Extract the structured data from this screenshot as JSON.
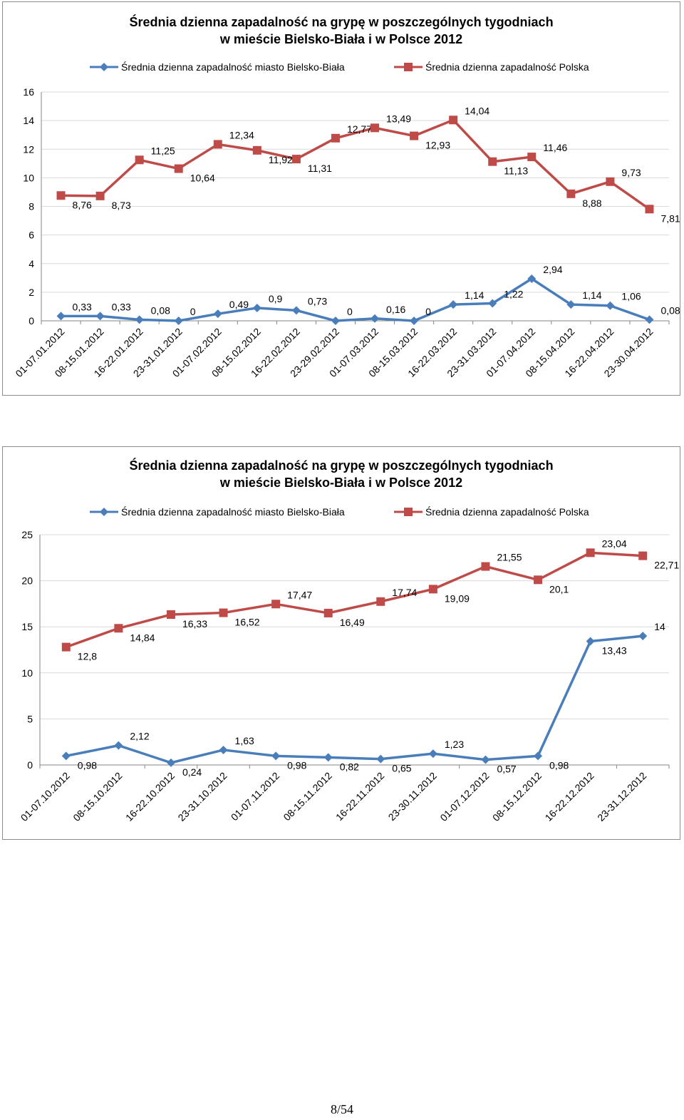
{
  "colors": {
    "blue": "#4a7ebb",
    "red": "#be4b48",
    "grid": "#d9d9d9",
    "axis": "#868686"
  },
  "page_number": "8/54",
  "chart_data": [
    {
      "type": "line",
      "title": "Średnia dzienna zapadalność na grypę w poszczególnych tygodniach",
      "subtitle": "w mieście Bielsko-Biała i w Polsce 2012",
      "legend_position": "top",
      "grid": true,
      "ylim": [
        0,
        16
      ],
      "yticks": [
        0,
        2,
        4,
        6,
        8,
        10,
        12,
        14,
        16
      ],
      "categories": [
        "01-07.01.2012",
        "08-15.01.2012",
        "16-22.01.2012",
        "23-31.01.2012",
        "01-07.02.2012",
        "08-15.02.2012",
        "16-22.02.2012",
        "23-29.02.2012",
        "01-07.03.2012",
        "08-15.03.2012",
        "16-22.03.2012",
        "23-31.03.2012",
        "01-07.04.2012",
        "08-15.04.2012",
        "16-22.04.2012",
        "23-30.04.2012"
      ],
      "series": [
        {
          "name": "Średnia dzienna zapadalność miasto Bielsko-Biała",
          "marker": "diamond",
          "color": "#4a7ebb",
          "values": [
            0.33,
            0.33,
            0.08,
            0,
            0.49,
            0.9,
            0.73,
            0,
            0.16,
            0,
            1.14,
            1.22,
            2.94,
            1.14,
            1.06,
            0.08
          ],
          "labels": [
            "0,33",
            "0,33",
            "0,08",
            "0",
            "0,49",
            "0,9",
            "0,73",
            "0",
            "0,16",
            "0",
            "1,14",
            "1,22",
            "2,94",
            "1,14",
            "1,06",
            "0,08"
          ]
        },
        {
          "name": "Średnia dzienna zapadalność Polska",
          "marker": "square",
          "color": "#be4b48",
          "values": [
            8.76,
            8.73,
            11.25,
            10.64,
            12.34,
            11.92,
            11.31,
            12.77,
            13.49,
            12.93,
            14.04,
            11.13,
            11.46,
            8.88,
            9.73,
            7.81
          ],
          "labels": [
            "8,76",
            "8,73",
            "11,25",
            "10,64",
            "12,34",
            "11,92",
            "11,31",
            "12,77",
            "13,49",
            "12,93",
            "14,04",
            "11,13",
            "11,46",
            "8,88",
            "9,73",
            "7,81"
          ]
        }
      ]
    },
    {
      "type": "line",
      "title": "Średnia dzienna zapadalność na grypę w poszczególnych tygodniach",
      "subtitle": "w mieście Bielsko-Biała i w Polsce 2012",
      "legend_position": "top",
      "grid": true,
      "ylim": [
        0,
        25
      ],
      "yticks": [
        0,
        5,
        10,
        15,
        20,
        25
      ],
      "categories": [
        "01-07.10.2012",
        "08-15.10.2012",
        "16-22.10.2012",
        "23-31.10.2012",
        "01-07.11.2012",
        "08-15.11.2012",
        "16-22.11.2012",
        "23-30.11.2012",
        "01-07.12.2012",
        "08-15.12.2012",
        "16-22.12.2012",
        "23-31.12.2012"
      ],
      "series": [
        {
          "name": "Średnia dzienna zapadalność miasto Bielsko-Biała",
          "marker": "diamond",
          "color": "#4a7ebb",
          "values": [
            0.98,
            2.12,
            0.24,
            1.63,
            0.98,
            0.82,
            0.65,
            1.23,
            0.57,
            0.98,
            13.43,
            14
          ],
          "labels": [
            "0,98",
            "2,12",
            "0,24",
            "1,63",
            "0,98",
            "0,82",
            "0,65",
            "1,23",
            "0,57",
            "0,98",
            "13,43",
            "14"
          ]
        },
        {
          "name": "Średnia dzienna zapadalność Polska",
          "marker": "square",
          "color": "#be4b48",
          "values": [
            12.8,
            14.84,
            16.33,
            16.52,
            17.47,
            16.49,
            17.74,
            19.09,
            21.55,
            20.1,
            23.04,
            22.71
          ],
          "labels": [
            "12,8",
            "14,84",
            "16,33",
            "16,52",
            "17,47",
            "16,49",
            "17,74",
            "19,09",
            "21,55",
            "20,1",
            "23,04",
            "22,71"
          ]
        }
      ]
    }
  ]
}
